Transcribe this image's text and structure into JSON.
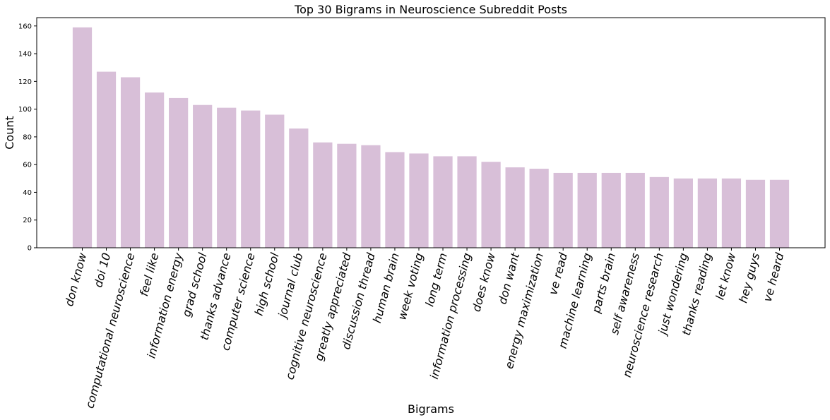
{
  "chart_data": {
    "type": "bar",
    "title": "Top 30 Bigrams in Neuroscience Subreddit Posts",
    "xlabel": "Bigrams",
    "ylabel": "Count",
    "ylim": [
      0,
      166
    ],
    "yticks": [
      0,
      20,
      40,
      60,
      80,
      100,
      120,
      140,
      160
    ],
    "xtick_rotation": 75,
    "grid": false,
    "bar_color": "#d8bfd8",
    "categories": [
      "don know",
      "doi 10",
      "computational neuroscience",
      "feel like",
      "information energy",
      "grad school",
      "thanks advance",
      "computer science",
      "high school",
      "journal club",
      "cognitive neuroscience",
      "greatly appreciated",
      "discussion thread",
      "human brain",
      "week voting",
      "long term",
      "information processing",
      "does know",
      "don want",
      "energy maximization",
      "ve read",
      "machine learning",
      "parts brain",
      "self awareness",
      "neuroscience research",
      "just wondering",
      "thanks reading",
      "let know",
      "hey guys",
      "ve heard"
    ],
    "values": [
      159,
      127,
      123,
      112,
      108,
      103,
      101,
      99,
      96,
      86,
      76,
      75,
      74,
      69,
      68,
      66,
      66,
      62,
      58,
      57,
      54,
      54,
      54,
      54,
      51,
      50,
      50,
      50,
      49,
      49
    ]
  }
}
